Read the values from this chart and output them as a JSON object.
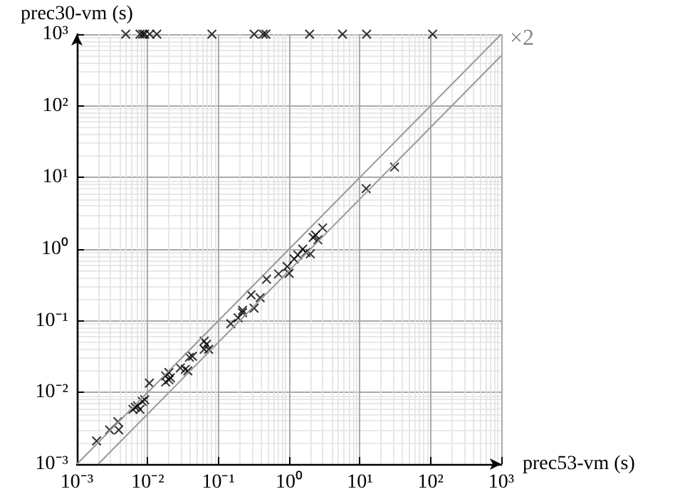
{
  "chart_data": {
    "type": "scatter",
    "xlabel": "prec53-vm (s)",
    "ylabel": "prec30-vm (s)",
    "log": "xy",
    "grid": true,
    "marker": "cross",
    "xlim": [
      0.001,
      1000
    ],
    "ylim": [
      0.001,
      1000
    ],
    "xticks": [
      {
        "value": 0.001,
        "label": "10⁻³"
      },
      {
        "value": 0.01,
        "label": "10⁻²"
      },
      {
        "value": 0.1,
        "label": "10⁻¹"
      },
      {
        "value": 1,
        "label": "10⁰"
      },
      {
        "value": 10,
        "label": "10¹"
      },
      {
        "value": 100,
        "label": "10²"
      },
      {
        "value": 1000,
        "label": "10³"
      }
    ],
    "yticks": [
      {
        "value": 0.001,
        "label": "10⁻³"
      },
      {
        "value": 0.01,
        "label": "10⁻²"
      },
      {
        "value": 0.1,
        "label": "10⁻¹"
      },
      {
        "value": 1,
        "label": "10⁰"
      },
      {
        "value": 10,
        "label": "10¹"
      },
      {
        "value": 100,
        "label": "10²"
      },
      {
        "value": 1000,
        "label": "10³"
      }
    ],
    "annotations": [
      {
        "text": "×2",
        "x": 1000,
        "y": 500
      }
    ],
    "series": [
      {
        "type": "line",
        "color": "#999999",
        "marker": "none",
        "x": [
          0.001,
          1000
        ],
        "values": [
          0.001,
          1000
        ]
      },
      {
        "type": "line",
        "color": "#999999",
        "marker": "none",
        "x": [
          0.002,
          1000
        ],
        "values": [
          0.001,
          500
        ]
      },
      {
        "color": "#000000",
        "x": [
          0.0019,
          0.0029,
          0.0038,
          0.0039,
          0.0062,
          0.0067,
          0.0072,
          0.0078,
          0.0084,
          0.0091,
          0.0106,
          0.018,
          0.02,
          0.02,
          0.021,
          0.018,
          0.029,
          0.034,
          0.037,
          0.039,
          0.043,
          0.063,
          0.068,
          0.063,
          0.073,
          0.15,
          0.19,
          0.22,
          0.22,
          0.29,
          0.32,
          0.39,
          0.48,
          0.71,
          0.94,
          1.0,
          1.18,
          1.33,
          1.56,
          1.73,
          2.0,
          2.19,
          2.37,
          2.55,
          2.98,
          12.3,
          31
        ],
        "values": [
          0.0021,
          0.003,
          0.0039,
          0.003,
          0.0058,
          0.0062,
          0.0065,
          0.0058,
          0.0075,
          0.0079,
          0.0135,
          0.017,
          0.019,
          0.015,
          0.016,
          0.014,
          0.022,
          0.021,
          0.02,
          0.031,
          0.032,
          0.052,
          0.047,
          0.04,
          0.04,
          0.091,
          0.11,
          0.13,
          0.14,
          0.23,
          0.15,
          0.21,
          0.38,
          0.45,
          0.57,
          0.46,
          0.73,
          0.83,
          1.0,
          0.9,
          0.86,
          1.46,
          1.57,
          1.35,
          1.98,
          7.0,
          14
        ]
      },
      {
        "color": "#000000",
        "x": [
          0.0049,
          0.0078,
          0.0085,
          0.0091,
          0.0107,
          0.0135,
          0.081,
          0.32,
          0.43,
          0.47,
          1.95,
          5.7,
          12.5,
          107
        ],
        "values": [
          1000,
          1000,
          1000,
          1000,
          1000,
          1000,
          1000,
          1000,
          1000,
          1000,
          1000,
          1000,
          1000,
          1000
        ]
      }
    ]
  }
}
